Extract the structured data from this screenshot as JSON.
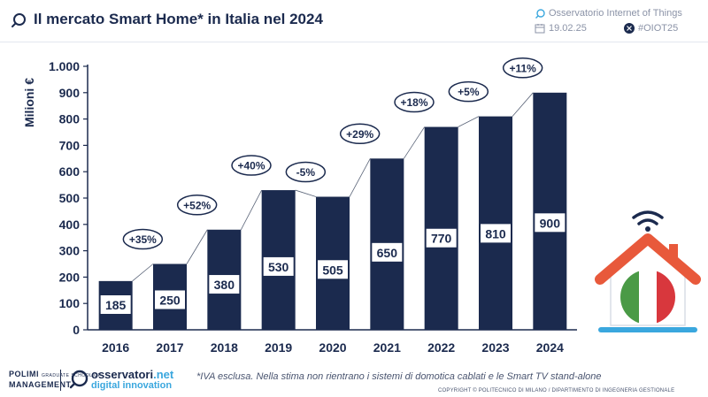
{
  "header": {
    "title": "Il mercato Smart Home* in Italia nel 2024",
    "source": "Osservatorio Internet of Things",
    "date": "19.02.25",
    "hashtag": "#OIOT25"
  },
  "colors": {
    "bar": "#1b2a4e",
    "accent_blue": "#3aa7de",
    "roof": "#e8593b",
    "flag_green": "#4a9a46",
    "flag_red": "#d8373d"
  },
  "chart_data": {
    "type": "bar",
    "title": "Il mercato Smart Home* in Italia nel 2024",
    "xlabel": "",
    "ylabel": "Milioni €",
    "categories": [
      "2016",
      "2017",
      "2018",
      "2019",
      "2020",
      "2021",
      "2022",
      "2023",
      "2024"
    ],
    "values": [
      185,
      250,
      380,
      530,
      505,
      650,
      770,
      810,
      900
    ],
    "value_labels": [
      "185",
      "250",
      "380",
      "530",
      "505",
      "650",
      "770",
      "810",
      "900"
    ],
    "growth_labels": [
      "+35%",
      "+52%",
      "+40%",
      "-5%",
      "+29%",
      "+18%",
      "+5%",
      "+11%"
    ],
    "ylim": [
      0,
      1000
    ],
    "yticks": [
      0,
      100,
      200,
      300,
      400,
      500,
      600,
      700,
      800,
      900,
      1000
    ],
    "ytick_labels": [
      "0",
      "100",
      "200",
      "300",
      "400",
      "500",
      "600",
      "700",
      "800",
      "900",
      "1.000"
    ],
    "grid": false,
    "legend": "none"
  },
  "footer": {
    "polimi_line1": "POLIMI",
    "polimi_small": "GRADUATE SCHOOL OF",
    "polimi_line2": "MANAGEMENT",
    "obs_name": "osservatori",
    "obs_tld": ".net",
    "obs_sub": "digital innovation",
    "note": "*IVA esclusa. Nella stima non rientrano i sistemi di domotica cablati e le Smart TV stand-alone",
    "copyright": "COPYRIGHT © POLITECNICO DI MILANO / DIPARTIMENTO DI INGEGNERIA GESTIONALE"
  },
  "icons": {
    "title": "search-icon",
    "source": "search-icon",
    "date": "calendar-icon",
    "hashtag": "x-logo-icon",
    "house": "smart-home-icon",
    "wifi": "wifi-icon"
  }
}
